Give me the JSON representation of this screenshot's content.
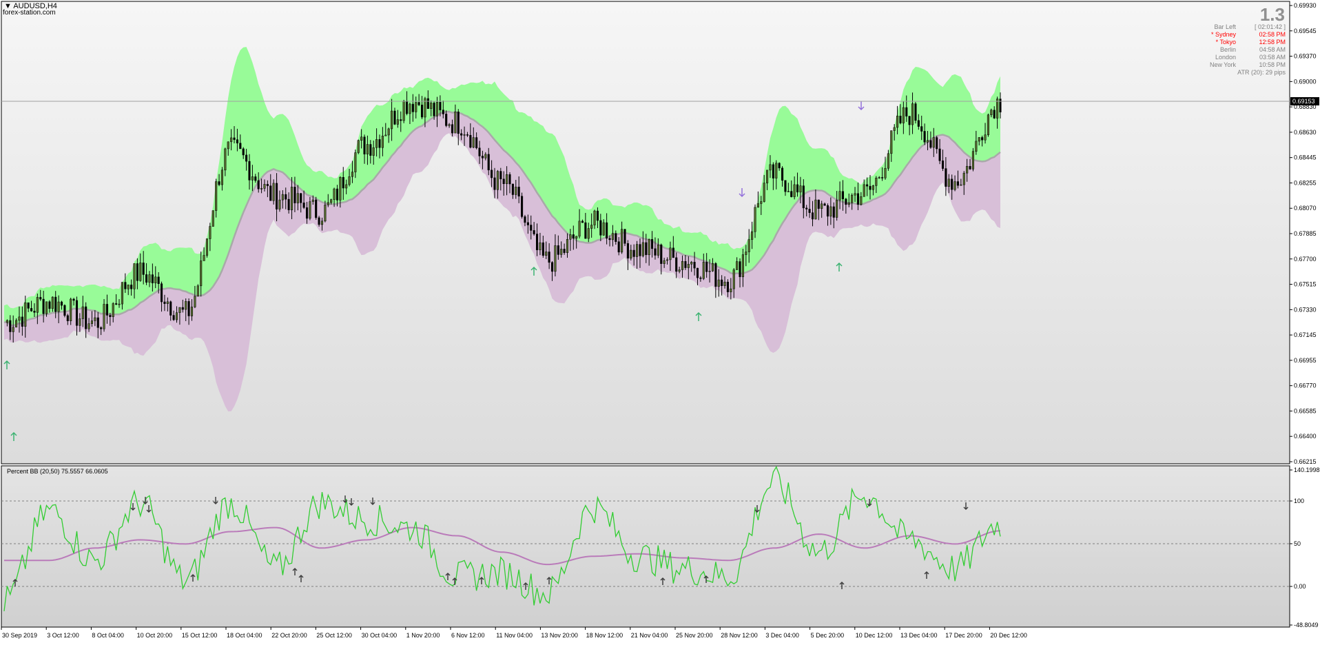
{
  "chart": {
    "symbol_title": "AUDUSD,H4",
    "watermark": "forex-station.com",
    "spread": "1.3",
    "current_price": "0.69153"
  },
  "clock_panel": {
    "bar_left_label": "Bar Left",
    "bar_left_value": "[ 02:01:42 ]",
    "rows": [
      {
        "city": "* Sydney",
        "time": "02:58 PM",
        "highlight": true
      },
      {
        "city": "* Tokyo",
        "time": "12:58 PM",
        "highlight": true
      },
      {
        "city": "Berlin",
        "time": "04:58 AM",
        "highlight": false
      },
      {
        "city": "London",
        "time": "03:58 AM",
        "highlight": false
      },
      {
        "city": "New York",
        "time": "10:58 PM",
        "highlight": false
      }
    ],
    "atr": "ATR (20): 29 pips"
  },
  "price_axis": [
    "0.69930",
    "0.69545",
    "0.69370",
    "0.69000",
    "0.68830",
    "0.68630",
    "0.68445",
    "0.68255",
    "0.68070",
    "0.67885",
    "0.67700",
    "0.67515",
    "0.67330",
    "0.67145",
    "0.66955",
    "0.66770",
    "0.66585",
    "0.66400",
    "0.66215"
  ],
  "indicator": {
    "label": "Percent BB (20,50) 75.5557 66.0605",
    "axis": [
      "140.1998",
      "100",
      "50",
      "0.00",
      "-48.8049"
    ]
  },
  "time_axis": [
    "30 Sep 2019",
    "3 Oct 12:00",
    "8 Oct 04:00",
    "10 Oct 20:00",
    "15 Oct 12:00",
    "18 Oct 04:00",
    "22 Oct 20:00",
    "25 Oct 12:00",
    "30 Oct 04:00",
    "1 Nov 20:00",
    "6 Nov 12:00",
    "11 Nov 04:00",
    "13 Nov 20:00",
    "18 Nov 12:00",
    "21 Nov 04:00",
    "25 Nov 20:00",
    "28 Nov 12:00",
    "3 Dec 04:00",
    "5 Dec 20:00",
    "10 Dec 12:00",
    "13 Dec 04:00",
    "17 Dec 20:00",
    "20 Dec 12:00"
  ],
  "chart_data": {
    "type": "line",
    "main": {
      "series": [
        {
          "name": "AUDUSD,H4",
          "x": [
            "30 Sep 2019",
            "3 Oct 12:00",
            "8 Oct 04:00",
            "10 Oct 20:00",
            "15 Oct 12:00",
            "18 Oct 04:00",
            "22 Oct 20:00",
            "25 Oct 12:00",
            "30 Oct 04:00",
            "1 Nov 20:00",
            "6 Nov 12:00",
            "11 Nov 04:00",
            "13 Nov 20:00",
            "18 Nov 12:00",
            "21 Nov 04:00",
            "25 Nov 20:00",
            "28 Nov 12:00",
            "3 Dec 04:00",
            "5 Dec 20:00",
            "10 Dec 12:00",
            "13 Dec 04:00",
            "17 Dec 20:00",
            "20 Dec 12:00"
          ],
          "values": [
            0.6735,
            0.6752,
            0.6735,
            0.6775,
            0.6742,
            0.6875,
            0.6838,
            0.6825,
            0.688,
            0.6915,
            0.6898,
            0.6848,
            0.6785,
            0.6815,
            0.6795,
            0.6785,
            0.677,
            0.6855,
            0.6825,
            0.684,
            0.6905,
            0.685,
            0.6915
          ]
        }
      ],
      "ylim": [
        0.66215,
        0.6993
      ]
    },
    "indicator": {
      "series": [
        {
          "x": [
            "30 Sep 2019",
            "3 Oct 12:00",
            "8 Oct 04:00",
            "10 Oct 20:00",
            "15 Oct 12:00",
            "18 Oct 04:00",
            "22 Oct 20:00",
            "25 Oct 12:00",
            "30 Oct 04:00",
            "1 Nov 20:00",
            "6 Nov 12:00",
            "11 Nov 04:00",
            "13 Nov 20:00",
            "18 Nov 12:00",
            "21 Nov 04:00",
            "25 Nov 20:00",
            "28 Nov 12:00",
            "3 Dec 04:00",
            "5 Dec 20:00",
            "10 Dec 12:00",
            "13 Dec 04:00",
            "17 Dec 20:00",
            "20 Dec 12:00"
          ],
          "values": [
            -20,
            90,
            30,
            100,
            5,
            100,
            20,
            100,
            80,
            70,
            10,
            15,
            -10,
            95,
            35,
            20,
            10,
            125,
            40,
            110,
            55,
            20,
            75.5557
          ]
        },
        {
          "x": [
            "30 Sep 2019",
            "3 Oct 12:00",
            "8 Oct 04:00",
            "10 Oct 20:00",
            "15 Oct 12:00",
            "18 Oct 04:00",
            "22 Oct 20:00",
            "25 Oct 12:00",
            "30 Oct 04:00",
            "1 Nov 20:00",
            "6 Nov 12:00",
            "11 Nov 04:00",
            "13 Nov 20:00",
            "18 Nov 12:00",
            "21 Nov 04:00",
            "25 Nov 20:00",
            "28 Nov 12:00",
            "3 Dec 04:00",
            "5 Dec 20:00",
            "10 Dec 12:00",
            "13 Dec 04:00",
            "17 Dec 20:00",
            "20 Dec 12:00"
          ],
          "values": [
            30,
            30,
            45,
            55,
            50,
            65,
            70,
            45,
            55,
            70,
            60,
            40,
            25,
            35,
            38,
            33,
            30,
            45,
            62,
            45,
            60,
            50,
            66.0605
          ]
        }
      ],
      "ylim": [
        -48.8049,
        140.1998
      ]
    }
  }
}
